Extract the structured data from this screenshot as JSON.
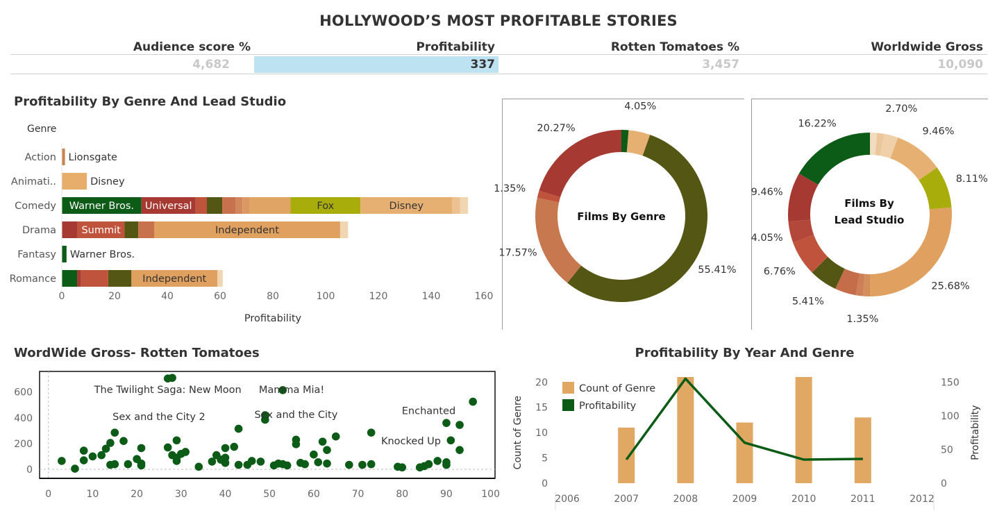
{
  "dashboard": {
    "title": "HOLLYWOOD’S MOST PROFITABLE STORIES",
    "kpis": [
      {
        "label": "Audience  score %",
        "value": "4,682",
        "highlight": false
      },
      {
        "label": "Profitability",
        "value": "337",
        "highlight": true
      },
      {
        "label": "Rotten Tomatoes %",
        "value": "3,457",
        "highlight": false
      },
      {
        "label": "Worldwide Gross",
        "value": "10,090",
        "highlight": false
      }
    ]
  },
  "chart_data": [
    {
      "id": "genre-studio-bar",
      "type": "bar",
      "orientation": "horizontal",
      "stacked": true,
      "title": "Profitability By Genre And Lead Studio",
      "row_header": "Genre",
      "xlabel": "Profitability",
      "xlim": [
        0,
        160
      ],
      "xticks": [
        0,
        20,
        40,
        60,
        80,
        100,
        120,
        140,
        160
      ],
      "categories": [
        "Action",
        "Animati..",
        "Comedy",
        "Drama",
        "Fantasy",
        "Romance"
      ],
      "rows": [
        {
          "genre": "Action",
          "segments": [
            {
              "value": 1.2,
              "color": "#c9854f",
              "label": "Lionsgate"
            }
          ]
        },
        {
          "genre": "Animati..",
          "segments": [
            {
              "value": 9.5,
              "color": "#e6ad6b",
              "label": "Disney"
            }
          ]
        },
        {
          "genre": "Comedy",
          "segments": [
            {
              "value": 30.2,
              "color": "#0c5c17",
              "label": "Warner Bros."
            },
            {
              "value": 20.5,
              "color": "#a63a33",
              "label": "Universal"
            },
            {
              "value": 4.3,
              "color": "#c0533c",
              "label": ""
            },
            {
              "value": 5.8,
              "color": "#545614",
              "label": ""
            },
            {
              "value": 5.2,
              "color": "#c8724d",
              "label": ""
            },
            {
              "value": 2.5,
              "color": "#d0885a",
              "label": ""
            },
            {
              "value": 2.7,
              "color": "#dc9863",
              "label": ""
            },
            {
              "value": 15.5,
              "color": "#e0a464",
              "label": ""
            },
            {
              "value": 26.5,
              "color": "#a9ad0c",
              "label": "Fox"
            },
            {
              "value": 34.8,
              "color": "#e6b073",
              "label": "Disney"
            },
            {
              "value": 3.0,
              "color": "#edc090",
              "label": ""
            },
            {
              "value": 3.0,
              "color": "#f1d6b2",
              "label": ""
            }
          ]
        },
        {
          "genre": "Drama",
          "segments": [
            {
              "value": 6.0,
              "color": "#a63a33",
              "label": ""
            },
            {
              "value": 17.8,
              "color": "#c0533c",
              "label": "Summit"
            },
            {
              "value": 5.2,
              "color": "#545614",
              "label": ""
            },
            {
              "value": 6.0,
              "color": "#c8724d",
              "label": ""
            },
            {
              "value": 70.5,
              "color": "#e0a05f",
              "label": "Independent"
            },
            {
              "value": 3.0,
              "color": "#f1d6b2",
              "label": ""
            }
          ]
        },
        {
          "genre": "Fantasy",
          "segments": [
            {
              "value": 1.8,
              "color": "#0c5c17",
              "label": "Warner Bros."
            }
          ]
        },
        {
          "genre": "Romance",
          "segments": [
            {
              "value": 5.8,
              "color": "#0c5c17",
              "label": ""
            },
            {
              "value": 1.5,
              "color": "#a63a33",
              "label": ""
            },
            {
              "value": 10.3,
              "color": "#c0533c",
              "label": ""
            },
            {
              "value": 8.8,
              "color": "#545614",
              "label": ""
            },
            {
              "value": 32.6,
              "color": "#e0a05f",
              "label": "Independent"
            },
            {
              "value": 2.0,
              "color": "#f1d6b2",
              "label": ""
            }
          ]
        }
      ]
    },
    {
      "id": "films-by-genre-donut",
      "type": "pie",
      "donut": true,
      "center_label": "Films By Genre",
      "slices": [
        {
          "value": 1.35,
          "color": "#0c5c17",
          "label": ""
        },
        {
          "value": 4.05,
          "color": "#e6b073",
          "label": "4.05%"
        },
        {
          "value": 55.41,
          "color": "#545614",
          "label": "55.41%"
        },
        {
          "value": 17.57,
          "color": "#c8784f",
          "label": "17.57%"
        },
        {
          "value": 1.35,
          "color": "#c0533c",
          "label": "1.35%"
        },
        {
          "value": 20.27,
          "color": "#a63a33",
          "label": "20.27%"
        }
      ]
    },
    {
      "id": "films-by-studio-donut",
      "type": "pie",
      "donut": true,
      "center_label": "Films By Lead Studio",
      "slices": [
        {
          "value": 1.35,
          "color": "#f1dcc0",
          "label": ""
        },
        {
          "value": 1.35,
          "color": "#ecc79c",
          "label": ""
        },
        {
          "value": 2.7,
          "color": "#f0d0a8",
          "label": "2.70%"
        },
        {
          "value": 9.46,
          "color": "#e6b073",
          "label": "9.46%"
        },
        {
          "value": 8.11,
          "color": "#a9ad0c",
          "label": "8.11%"
        },
        {
          "value": 25.68,
          "color": "#e0a05f",
          "label": "25.68%"
        },
        {
          "value": 1.35,
          "color": "#d48e5c",
          "label": "1.35%"
        },
        {
          "value": 1.35,
          "color": "#cd7f56",
          "label": ""
        },
        {
          "value": 4.05,
          "color": "#c56d49",
          "label": ""
        },
        {
          "value": 5.41,
          "color": "#545614",
          "label": "5.41%"
        },
        {
          "value": 6.76,
          "color": "#c0533c",
          "label": "6.76%"
        },
        {
          "value": 4.05,
          "color": "#b3483a",
          "label": "4.05%"
        },
        {
          "value": 9.46,
          "color": "#a63a33",
          "label": "9.46%"
        },
        {
          "value": 16.22,
          "color": "#0c5c17",
          "label": "16.22%"
        }
      ]
    },
    {
      "id": "gross-rotten-scatter",
      "type": "scatter",
      "title": "WordWide Gross- Rotten Tomatoes",
      "xlim": [
        -2,
        101
      ],
      "ylim": [
        -70,
        760
      ],
      "xticks": [
        0,
        10,
        20,
        30,
        40,
        50,
        60,
        70,
        80,
        90,
        100
      ],
      "yticks": [
        0,
        200,
        400,
        600
      ],
      "color": "#0c5c17",
      "points": [
        [
          3,
          65
        ],
        [
          6,
          5
        ],
        [
          8,
          70
        ],
        [
          8,
          145
        ],
        [
          10,
          100
        ],
        [
          12,
          110
        ],
        [
          13,
          160
        ],
        [
          14,
          205
        ],
        [
          14,
          35
        ],
        [
          15,
          40
        ],
        [
          15,
          285
        ],
        [
          17,
          220
        ],
        [
          18,
          40
        ],
        [
          20,
          80
        ],
        [
          21,
          165
        ],
        [
          21,
          45
        ],
        [
          21,
          30
        ],
        [
          27,
          705
        ],
        [
          28,
          710
        ],
        [
          27,
          170
        ],
        [
          28,
          110
        ],
        [
          29,
          90
        ],
        [
          29,
          225
        ],
        [
          29,
          65
        ],
        [
          30,
          120
        ],
        [
          31,
          135
        ],
        [
          34,
          20
        ],
        [
          37,
          60
        ],
        [
          38,
          110
        ],
        [
          39,
          75
        ],
        [
          40,
          90
        ],
        [
          40,
          50
        ],
        [
          40,
          165
        ],
        [
          42,
          175
        ],
        [
          43,
          315
        ],
        [
          43,
          35
        ],
        [
          45,
          35
        ],
        [
          46,
          65
        ],
        [
          48,
          60
        ],
        [
          49,
          420
        ],
        [
          49,
          385
        ],
        [
          51,
          30
        ],
        [
          52,
          45
        ],
        [
          53,
          40
        ],
        [
          54,
          30
        ],
        [
          53,
          615
        ],
        [
          56,
          230
        ],
        [
          56,
          195
        ],
        [
          57,
          50
        ],
        [
          58,
          40
        ],
        [
          60,
          115
        ],
        [
          61,
          55
        ],
        [
          62,
          215
        ],
        [
          63,
          150
        ],
        [
          63,
          45
        ],
        [
          65,
          255
        ],
        [
          68,
          35
        ],
        [
          71,
          35
        ],
        [
          73,
          285
        ],
        [
          73,
          40
        ],
        [
          79,
          20
        ],
        [
          80,
          15
        ],
        [
          84,
          15
        ],
        [
          85,
          25
        ],
        [
          86,
          40
        ],
        [
          88,
          65
        ],
        [
          90,
          360
        ],
        [
          90,
          35
        ],
        [
          90,
          55
        ],
        [
          91,
          225
        ],
        [
          93,
          345
        ],
        [
          93,
          150
        ],
        [
          96,
          525
        ]
      ],
      "annotations": [
        {
          "text": "The Twilight Saga: New Moon",
          "x": 27,
          "y": 620
        },
        {
          "text": "Mamma Mia!",
          "x": 55,
          "y": 620
        },
        {
          "text": "Sex and the City 2",
          "x": 25,
          "y": 410
        },
        {
          "text": "Sex and the City",
          "x": 56,
          "y": 425
        },
        {
          "text": "Enchanted",
          "x": 86,
          "y": 455
        },
        {
          "text": "Knocked Up",
          "x": 82,
          "y": 220
        }
      ]
    },
    {
      "id": "year-genre-combo",
      "type": "bar",
      "title": "Profitability By Year And Genre",
      "x": [
        2006,
        2007,
        2008,
        2009,
        2010,
        2011,
        2012
      ],
      "xlim": [
        2005.8,
        2012.2
      ],
      "ylabel": "Count of Genre",
      "ylabel_right": "Profitability",
      "ylim": [
        0,
        21
      ],
      "yticks": [
        0,
        5,
        10,
        15,
        20
      ],
      "ylim_right": [
        0,
        157.5
      ],
      "yticks_right": [
        0,
        50,
        100,
        150
      ],
      "legend": "top-left",
      "series": [
        {
          "name": "Count of Genre",
          "type": "bar",
          "color": "#e0a862",
          "points": [
            [
              2007,
              11
            ],
            [
              2008,
              21
            ],
            [
              2009,
              12
            ],
            [
              2010,
              21
            ],
            [
              2011,
              13
            ]
          ]
        },
        {
          "name": "Profitability",
          "type": "line",
          "color": "#0c5c17",
          "points": [
            [
              2007,
              35
            ],
            [
              2008,
              155
            ],
            [
              2009,
              60
            ],
            [
              2010,
              35
            ],
            [
              2011,
              36
            ]
          ]
        }
      ]
    }
  ]
}
